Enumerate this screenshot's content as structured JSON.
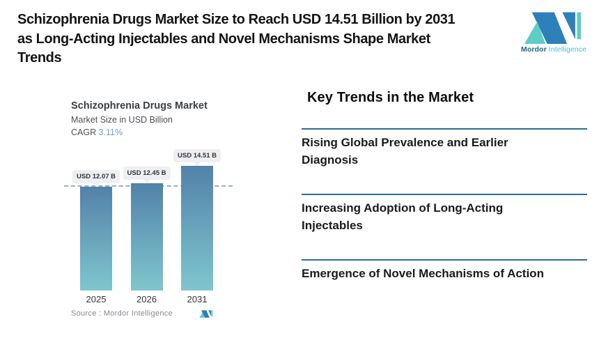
{
  "header": {
    "title_lines": [
      "Schizophrenia Drugs Market Size to Reach USD 14.51 Billion by 2031",
      "as Long-Acting Injectables and Novel Mechanisms Shape Market",
      "Trends"
    ]
  },
  "brand": {
    "name_bold": "Mordor",
    "name_light": "Intelligence",
    "colors": {
      "logo_blue": "#2e80b8",
      "logo_teal": "#5ecdc8",
      "text_blue": "#1b6795",
      "text_light": "#54b7d6"
    }
  },
  "chart": {
    "title": "Schizophrenia Drugs Market",
    "subtitle": "Market Size in USD Billion",
    "cagr_label": "CAGR",
    "cagr_value": "3.11%",
    "cagr_value_color": "#6da0cf",
    "source_label": "Source :  Mordor Intelligence"
  },
  "chart_data": {
    "type": "bar",
    "title": "Schizophrenia Drugs Market",
    "ylabel": "Market Size in USD Billion",
    "categories": [
      "2025",
      "2026",
      "2031"
    ],
    "values": [
      12.07,
      12.45,
      14.51
    ],
    "value_labels": [
      "USD 12.07 B",
      "USD 12.45 B",
      "USD 14.51 B"
    ],
    "cagr_percent": 3.11,
    "ylim": [
      0,
      14.51
    ],
    "grid": false,
    "reference_line": {
      "at_value": 12.07,
      "style": "dashed",
      "color": "#94aecb"
    },
    "bar_gradient_top": "#5282a8",
    "bar_gradient_bottom": "#7fc6ce"
  },
  "trends": {
    "heading": "Key Trends in the Market",
    "divider_color": "#2b6f92",
    "items": [
      {
        "lines": [
          "Rising Global Prevalence and Earlier",
          "Diagnosis"
        ]
      },
      {
        "lines": [
          "Increasing Adoption of Long-Acting",
          "Injectables"
        ]
      },
      {
        "lines": [
          "Emergence of Novel Mechanisms of Action"
        ]
      }
    ]
  }
}
